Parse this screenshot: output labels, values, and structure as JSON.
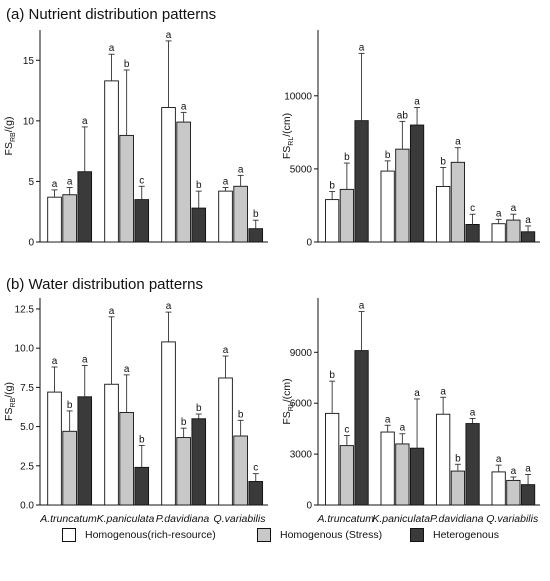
{
  "section_a_title": "(a) Nutrient distribution patterns",
  "section_b_title": "(b) Water distribution patterns",
  "legend": [
    {
      "label": "Homogenous(rich-resource)",
      "color": "#ffffff"
    },
    {
      "label": "Homogenous (Stress)",
      "color": "#c8c8c8"
    },
    {
      "label": "Heterogenous",
      "color": "#3a3a3a"
    }
  ],
  "chart_data": [
    {
      "type": "bar",
      "ylabel": "FS_RB/(g)",
      "ylabel_main": "FS",
      "ylabel_sub": "RB",
      "ylabel_unit": "/(g)",
      "categories": [
        "A.truncatum",
        "K.paniculata",
        "P.davidiana",
        "Q.variabilis"
      ],
      "show_category_labels": false,
      "ylim": [
        0,
        17.5
      ],
      "yticks": [
        0,
        5,
        10,
        15
      ],
      "ytick_labels": [
        "0",
        "5",
        "10",
        "15"
      ],
      "series": [
        {
          "name": "Homogenous(rich-resource)",
          "values": [
            3.7,
            13.3,
            11.1,
            4.2
          ],
          "errors": [
            0.6,
            2.2,
            5.5,
            0.3
          ],
          "letters": [
            "a",
            "a",
            "a",
            "a"
          ]
        },
        {
          "name": "Homogenous (Stress)",
          "values": [
            3.9,
            8.8,
            9.9,
            4.6
          ],
          "errors": [
            0.6,
            5.4,
            0.8,
            0.9
          ],
          "letters": [
            "a",
            "b",
            "a",
            "a"
          ]
        },
        {
          "name": "Heterogenous",
          "values": [
            5.8,
            3.5,
            2.8,
            1.1
          ],
          "errors": [
            3.7,
            1.1,
            1.4,
            0.7
          ],
          "letters": [
            "a",
            "c",
            "b",
            "b"
          ]
        }
      ]
    },
    {
      "type": "bar",
      "ylabel": "FS_RL/(cm)",
      "ylabel_main": "FS",
      "ylabel_sub": "RL",
      "ylabel_unit": "/(cm)",
      "categories": [
        "A.truncatum",
        "K.paniculata",
        "P.davidiana",
        "Q.variabilis"
      ],
      "show_category_labels": false,
      "ylim": [
        0,
        14500
      ],
      "yticks": [
        0,
        5000,
        10000
      ],
      "ytick_labels": [
        "0",
        "5000",
        "10000"
      ],
      "series": [
        {
          "name": "Homogenous(rich-resource)",
          "values": [
            2900,
            4850,
            3800,
            1250
          ],
          "errors": [
            550,
            700,
            1300,
            300
          ],
          "letters": [
            "b",
            "b",
            "b",
            "a"
          ]
        },
        {
          "name": "Homogenous (Stress)",
          "values": [
            3600,
            6350,
            5450,
            1500
          ],
          "errors": [
            1800,
            1900,
            1000,
            400
          ],
          "letters": [
            "b",
            "ab",
            "a",
            "a"
          ]
        },
        {
          "name": "Heterogenous",
          "values": [
            8300,
            8000,
            1200,
            700
          ],
          "errors": [
            4600,
            1200,
            700,
            400
          ],
          "letters": [
            "a",
            "a",
            "c",
            "a"
          ]
        }
      ]
    },
    {
      "type": "bar",
      "ylabel": "FS_RB/(g)",
      "ylabel_main": "FS",
      "ylabel_sub": "RB",
      "ylabel_unit": "/(g)",
      "categories": [
        "A.truncatum",
        "K.paniculata",
        "P.davidiana",
        "Q.variabilis"
      ],
      "show_category_labels": true,
      "ylim": [
        0,
        13.2
      ],
      "yticks": [
        0,
        2.5,
        5,
        7.5,
        10,
        12.5
      ],
      "ytick_labels": [
        "0.0",
        "2.5",
        "5.0",
        "7.5",
        "10.0",
        "12.5"
      ],
      "series": [
        {
          "name": "Homogenous(rich-resource)",
          "values": [
            7.2,
            7.7,
            10.4,
            8.1
          ],
          "errors": [
            1.6,
            4.3,
            1.9,
            1.4
          ],
          "letters": [
            "a",
            "a",
            "a",
            "a"
          ]
        },
        {
          "name": "Homogenous (Stress)",
          "values": [
            4.7,
            5.9,
            4.3,
            4.4
          ],
          "errors": [
            1.3,
            2.4,
            0.6,
            1.0
          ],
          "letters": [
            "b",
            "a",
            "b",
            "b"
          ]
        },
        {
          "name": "Heterogenous",
          "values": [
            6.9,
            2.4,
            5.5,
            1.5
          ],
          "errors": [
            2.0,
            1.4,
            0.3,
            0.5
          ],
          "letters": [
            "a",
            "b",
            "b",
            "c"
          ]
        }
      ]
    },
    {
      "type": "bar",
      "ylabel": "FS_RL/(cm)",
      "ylabel_main": "FS",
      "ylabel_sub": "RL",
      "ylabel_unit": "/(cm)",
      "categories": [
        "A.truncatum",
        "K.paniculata",
        "P.davidiana",
        "Q.variabilis"
      ],
      "show_category_labels": true,
      "ylim": [
        0,
        12200
      ],
      "yticks": [
        0,
        3000,
        6000,
        9000
      ],
      "ytick_labels": [
        "0",
        "3000",
        "6000",
        "9000"
      ],
      "series": [
        {
          "name": "Homogenous(rich-resource)",
          "values": [
            5400,
            4300,
            5350,
            1950
          ],
          "errors": [
            1900,
            400,
            1000,
            400
          ],
          "letters": [
            "b",
            "a",
            "a",
            "a"
          ]
        },
        {
          "name": "Homogenous (Stress)",
          "values": [
            3500,
            3600,
            2000,
            1450
          ],
          "errors": [
            600,
            600,
            400,
            200
          ],
          "letters": [
            "c",
            "a",
            "b",
            "a"
          ]
        },
        {
          "name": "Heterogenous",
          "values": [
            9100,
            3350,
            4800,
            1200
          ],
          "errors": [
            2300,
            2900,
            300,
            600
          ],
          "letters": [
            "a",
            "a",
            "a",
            "a"
          ]
        }
      ]
    }
  ]
}
